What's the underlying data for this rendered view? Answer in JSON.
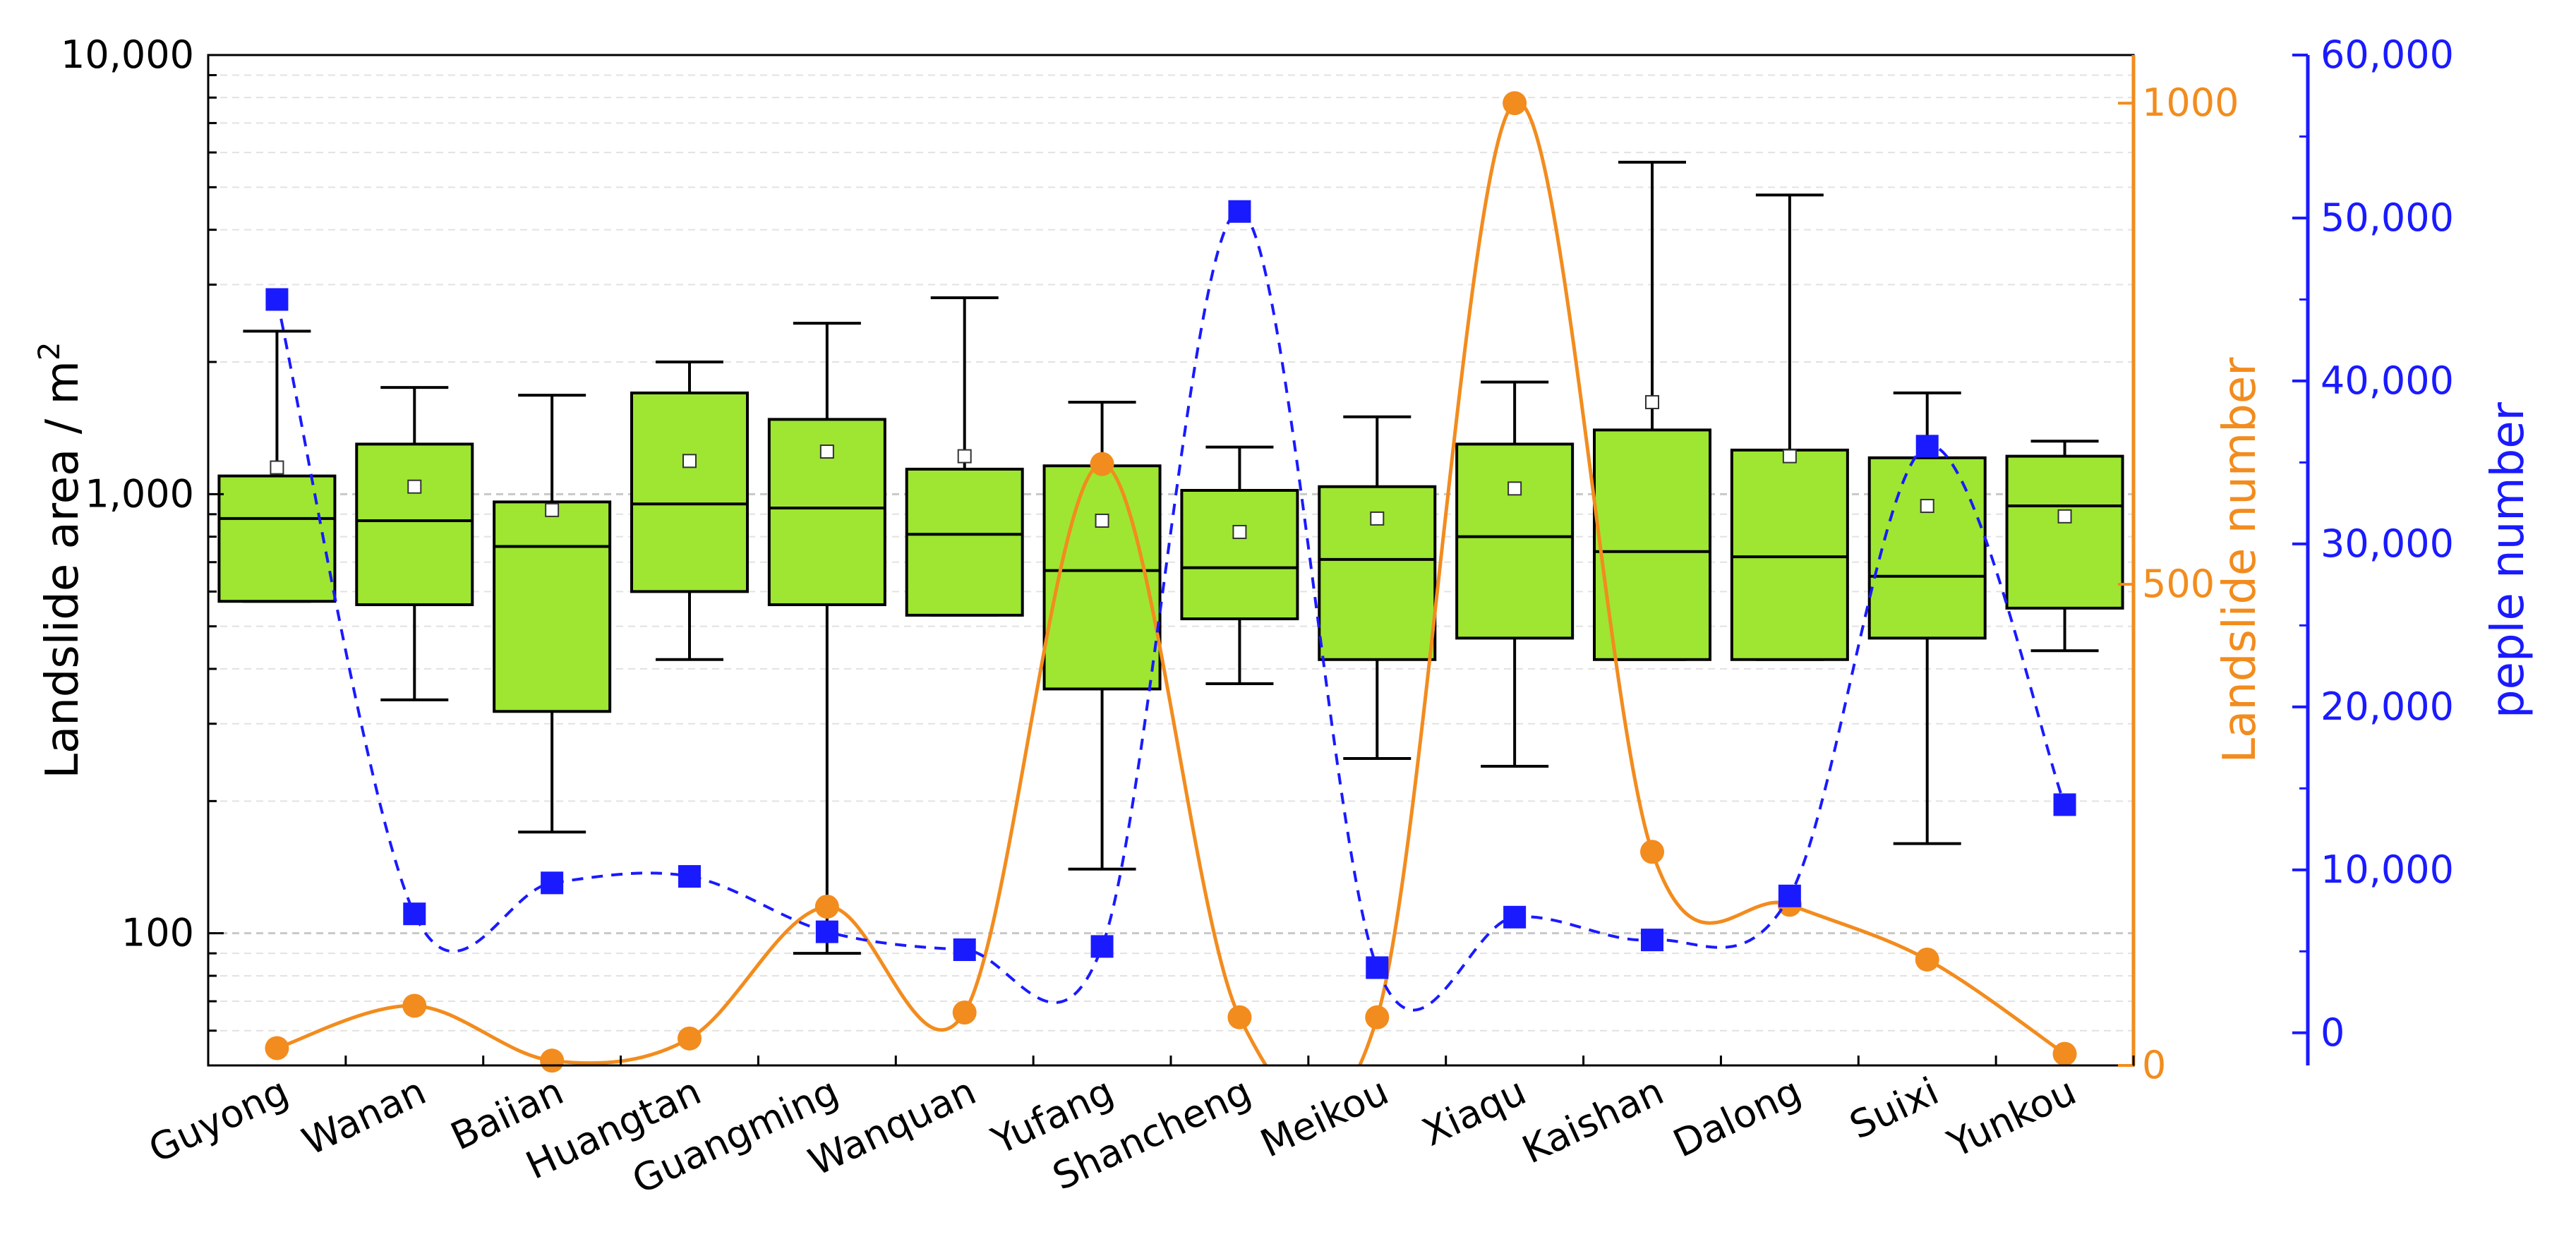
{
  "chart_data": {
    "type": "box",
    "categories": [
      "Guyong",
      "Wanan",
      "Baiian",
      "Huangtan",
      "Guangming",
      "Wanquan",
      "Yufang",
      "Shancheng",
      "Meikou",
      "Xiaqu",
      "Kaishan",
      "Dalong",
      "Suixi",
      "Yunkou"
    ],
    "left_axis": {
      "label": "Landslide area / m",
      "label_sup": "2",
      "scale": "log",
      "range": [
        50,
        10000
      ],
      "ticks": [
        100,
        1000,
        10000
      ],
      "tick_labels": [
        "100",
        "1,000",
        "10,000"
      ],
      "color": "#000000"
    },
    "right_axis_1": {
      "label": "Landslide number",
      "range": [
        0,
        1050
      ],
      "ticks": [
        0,
        500,
        1000
      ],
      "tick_labels": [
        "0",
        "500",
        "1000"
      ],
      "color": "#f28c1e"
    },
    "right_axis_2": {
      "label": "peple number",
      "range": [
        -2000,
        60000
      ],
      "ticks": [
        0,
        10000,
        20000,
        30000,
        40000,
        50000,
        60000
      ],
      "tick_labels": [
        "0",
        "10,000",
        "20,000",
        "30,000",
        "40,000",
        "50,000",
        "60,000"
      ],
      "color": "#1a1aff"
    },
    "box_series": {
      "name": "Landslide area",
      "color": "#9ee632",
      "boxes": [
        {
          "whisker_low": 570,
          "q1": 570,
          "median": 880,
          "q3": 1100,
          "whisker_high": 2350,
          "mean": 1150
        },
        {
          "whisker_low": 340,
          "q1": 560,
          "median": 870,
          "q3": 1300,
          "whisker_high": 1750,
          "mean": 1040
        },
        {
          "whisker_low": 170,
          "q1": 320,
          "median": 760,
          "q3": 960,
          "whisker_high": 1680,
          "mean": 920
        },
        {
          "whisker_low": 420,
          "q1": 600,
          "median": 950,
          "q3": 1700,
          "whisker_high": 2000,
          "mean": 1190
        },
        {
          "whisker_low": 90,
          "q1": 560,
          "median": 930,
          "q3": 1480,
          "whisker_high": 2450,
          "mean": 1250
        },
        {
          "whisker_low": 530,
          "q1": 530,
          "median": 810,
          "q3": 1140,
          "whisker_high": 2800,
          "mean": 1220
        },
        {
          "whisker_low": 140,
          "q1": 360,
          "median": 670,
          "q3": 1160,
          "whisker_high": 1620,
          "mean": 870
        },
        {
          "whisker_low": 370,
          "q1": 520,
          "median": 680,
          "q3": 1020,
          "whisker_high": 1280,
          "mean": 820
        },
        {
          "whisker_low": 250,
          "q1": 420,
          "median": 710,
          "q3": 1040,
          "whisker_high": 1500,
          "mean": 880
        },
        {
          "whisker_low": 240,
          "q1": 470,
          "median": 800,
          "q3": 1300,
          "whisker_high": 1800,
          "mean": 1030
        },
        {
          "whisker_low": 420,
          "q1": 420,
          "median": 740,
          "q3": 1400,
          "whisker_high": 5700,
          "mean": 1620
        },
        {
          "whisker_low": 420,
          "q1": 420,
          "median": 720,
          "q3": 1260,
          "whisker_high": 4800,
          "mean": 1220
        },
        {
          "whisker_low": 160,
          "q1": 470,
          "median": 650,
          "q3": 1210,
          "whisker_high": 1700,
          "mean": 940
        },
        {
          "whisker_low": 440,
          "q1": 550,
          "median": 940,
          "q3": 1220,
          "whisker_high": 1320,
          "mean": 890
        }
      ]
    },
    "line_series": [
      {
        "name": "Landslide number",
        "axis": "right_axis_1",
        "color": "#f28c1e",
        "marker": "circle",
        "style": "solid",
        "values": [
          18,
          62,
          5,
          28,
          165,
          55,
          625,
          50,
          50,
          1000,
          222,
          167,
          110,
          12
        ]
      },
      {
        "name": "peple number",
        "axis": "right_axis_2",
        "color": "#1a1aff",
        "marker": "square",
        "style": "dashed",
        "values": [
          45000,
          7300,
          9200,
          9600,
          6200,
          5100,
          5300,
          50400,
          4000,
          7100,
          5700,
          8400,
          36000,
          14000
        ]
      }
    ],
    "grid": "horizontal dashed (left axis log scale)",
    "legend": "none"
  }
}
